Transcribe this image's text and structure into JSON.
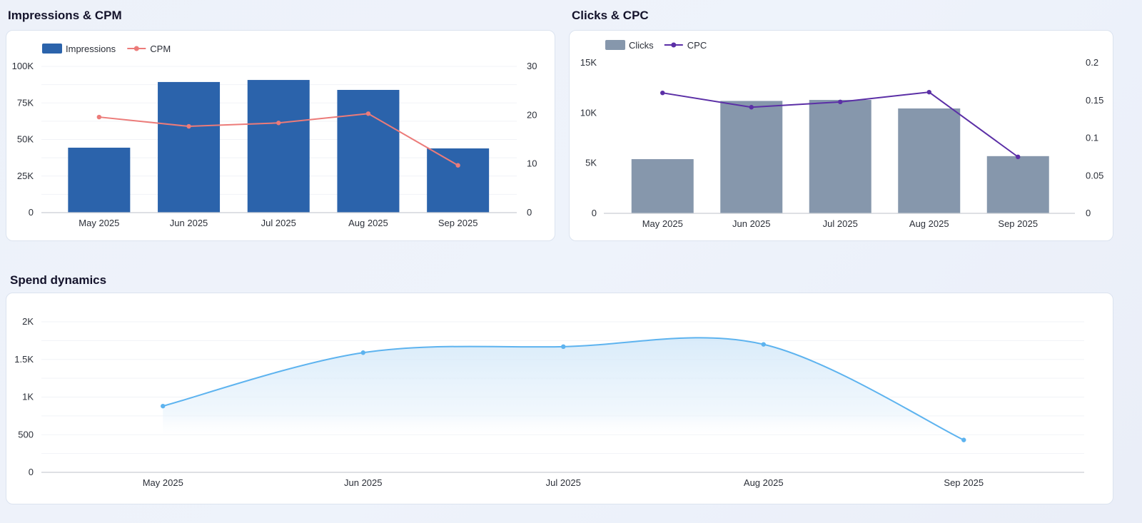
{
  "panels": [
    {
      "title": "Impressions & CPM",
      "chart_data": {
        "type": "bar",
        "categories": [
          "May 2025",
          "Jun 2025",
          "Jul 2025",
          "Aug 2025",
          "Sep 2025"
        ],
        "series": [
          {
            "name": "Impressions",
            "type": "bar",
            "axis": "left",
            "color": "#2b63ab",
            "values": [
              44400,
              89300,
              90700,
              83900,
              43900
            ]
          },
          {
            "name": "CPM",
            "type": "line",
            "axis": "right",
            "color": "#ec7b79",
            "values": [
              19.6,
              17.7,
              18.4,
              20.3,
              9.7
            ]
          }
        ],
        "left_axis": {
          "ylim": [
            0,
            100000
          ],
          "tick_labels": [
            "0",
            "25K",
            "50K",
            "75K",
            "100K"
          ]
        },
        "right_axis": {
          "ylim": [
            0,
            30
          ],
          "tick_labels": [
            "0",
            "10",
            "20",
            "30"
          ]
        },
        "grid": true,
        "legend": "top-left"
      }
    },
    {
      "title": "Clicks & CPC",
      "chart_data": {
        "type": "bar",
        "categories": [
          "May 2025",
          "Jun 2025",
          "Jul 2025",
          "Aug 2025",
          "Sep 2025"
        ],
        "series": [
          {
            "name": "Clicks",
            "type": "bar",
            "axis": "left",
            "color": "#8697ac",
            "values": [
              5400,
              11200,
              11300,
              10450,
              5700
            ]
          },
          {
            "name": "CPC",
            "type": "line",
            "axis": "right",
            "color": "#5b2fa6",
            "values": [
              0.16,
              0.141,
              0.148,
              0.161,
              0.075
            ]
          }
        ],
        "left_axis": {
          "ylim": [
            0,
            15000
          ],
          "tick_labels": [
            "0",
            "5K",
            "10K",
            "15K"
          ]
        },
        "right_axis": {
          "ylim": [
            0,
            0.2
          ],
          "tick_labels": [
            "0",
            "0.05",
            "0.1",
            "0.15",
            "0.2"
          ]
        },
        "grid": false,
        "legend": "top-left"
      }
    },
    {
      "title": "Spend dynamics",
      "chart_data": {
        "type": "area",
        "categories": [
          "May 2025",
          "Jun 2025",
          "Jul 2025",
          "Aug 2025",
          "Sep 2025"
        ],
        "series": [
          {
            "type": "line",
            "axis": "left",
            "color": "#5db3ef",
            "values": [
              880,
              1590,
              1670,
              1700,
              430
            ]
          }
        ],
        "left_axis": {
          "ylim": [
            0,
            2000
          ],
          "tick_labels": [
            "0",
            "500",
            "1K",
            "1.5K",
            "2K"
          ]
        },
        "grid": true,
        "smooth": true
      }
    }
  ]
}
